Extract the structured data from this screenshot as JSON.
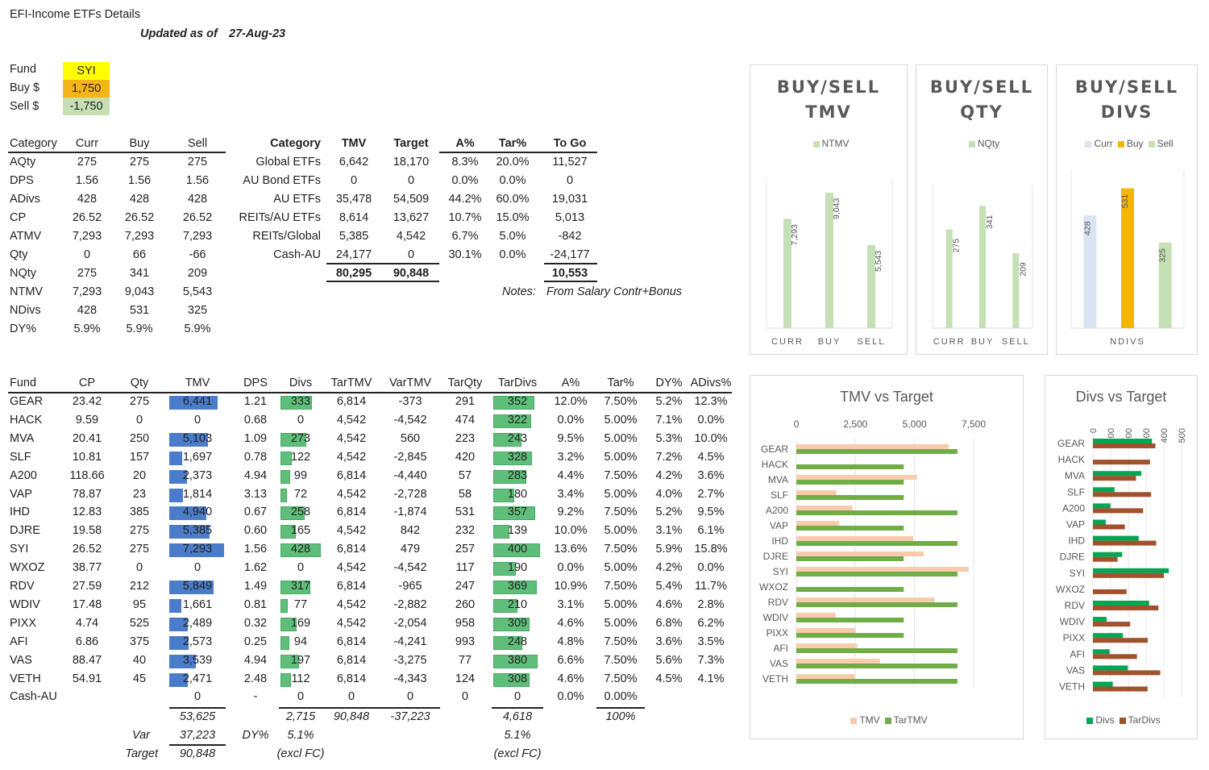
{
  "title": "EFI-Income ETFs Details",
  "updated_label": "Updated as of",
  "updated_date": "27-Aug-23",
  "fund_box": {
    "fund_label": "Fund",
    "fund_value": "SYI",
    "buy_label": "Buy $",
    "buy_value": "1,750",
    "sell_label": "Sell $",
    "sell_value": "-1,750"
  },
  "summary": {
    "headers": [
      "Category",
      "Curr",
      "Buy",
      "Sell"
    ],
    "rows": [
      [
        "AQty",
        "275",
        "275",
        "275"
      ],
      [
        "DPS",
        "1.56",
        "1.56",
        "1.56"
      ],
      [
        "ADivs",
        "428",
        "428",
        "428"
      ],
      [
        "CP",
        "26.52",
        "26.52",
        "26.52"
      ],
      [
        "ATMV",
        "7,293",
        "7,293",
        "7,293"
      ],
      [
        "Qty",
        "0",
        "66",
        "-66"
      ],
      [
        "NQty",
        "275",
        "341",
        "209"
      ],
      [
        "NTMV",
        "7,293",
        "9,043",
        "5,543"
      ],
      [
        "NDivs",
        "428",
        "531",
        "325"
      ],
      [
        "DY%",
        "5.9%",
        "5.9%",
        "5.9%"
      ]
    ]
  },
  "category": {
    "headers": [
      "Category",
      "TMV",
      "Target",
      "A%",
      "Tar%",
      "To Go"
    ],
    "rows": [
      [
        "Global ETFs",
        "6,642",
        "18,170",
        "8.3%",
        "20.0%",
        "11,527"
      ],
      [
        "AU Bond ETFs",
        "0",
        "0",
        "0.0%",
        "0.0%",
        "0"
      ],
      [
        "AU ETFs",
        "35,478",
        "54,509",
        "44.2%",
        "60.0%",
        "19,031"
      ],
      [
        "REITs/AU ETFs",
        "8,614",
        "13,627",
        "10.7%",
        "15.0%",
        "5,013"
      ],
      [
        "REITs/Global",
        "5,385",
        "4,542",
        "6.7%",
        "5.0%",
        "-842"
      ],
      [
        "Cash-AU",
        "24,177",
        "0",
        "30.1%",
        "0.0%",
        "-24,177"
      ]
    ],
    "totals": {
      "tmv": "80,295",
      "target": "90,848",
      "togo": "10,553"
    },
    "notes_label": "Notes:",
    "notes_text": "From Salary Contr+Bonus"
  },
  "funds": {
    "headers": [
      "Fund",
      "CP",
      "Qty",
      "TMV",
      "DPS",
      "Divs",
      "TarTMV",
      "VarTMV",
      "TarQty",
      "TarDivs",
      "A%",
      "Tar%",
      "DY%",
      "ADivs%"
    ],
    "rows": [
      [
        "GEAR",
        "23.42",
        "275",
        "6,441",
        "1.21",
        "333",
        "6,814",
        "-373",
        "291",
        "352",
        "12.0%",
        "7.50%",
        "5.2%",
        "12.3%"
      ],
      [
        "HACK",
        "9.59",
        "0",
        "0",
        "0.68",
        "0",
        "4,542",
        "-4,542",
        "474",
        "322",
        "0.0%",
        "5.00%",
        "7.1%",
        "0.0%"
      ],
      [
        "MVA",
        "20.41",
        "250",
        "5,103",
        "1.09",
        "273",
        "4,542",
        "560",
        "223",
        "243",
        "9.5%",
        "5.00%",
        "5.3%",
        "10.0%"
      ],
      [
        "SLF",
        "10.81",
        "157",
        "1,697",
        "0.78",
        "122",
        "4,542",
        "-2,845",
        "420",
        "328",
        "3.2%",
        "5.00%",
        "7.2%",
        "4.5%"
      ],
      [
        "A200",
        "118.66",
        "20",
        "2,373",
        "4.94",
        "99",
        "6,814",
        "-4,440",
        "57",
        "283",
        "4.4%",
        "7.50%",
        "4.2%",
        "3.6%"
      ],
      [
        "VAP",
        "78.87",
        "23",
        "1,814",
        "3.13",
        "72",
        "4,542",
        "-2,728",
        "58",
        "180",
        "3.4%",
        "5.00%",
        "4.0%",
        "2.7%"
      ],
      [
        "IHD",
        "12.83",
        "385",
        "4,940",
        "0.67",
        "258",
        "6,814",
        "-1,874",
        "531",
        "357",
        "9.2%",
        "7.50%",
        "5.2%",
        "9.5%"
      ],
      [
        "DJRE",
        "19.58",
        "275",
        "5,385",
        "0.60",
        "165",
        "4,542",
        "842",
        "232",
        "139",
        "10.0%",
        "5.00%",
        "3.1%",
        "6.1%"
      ],
      [
        "SYI",
        "26.52",
        "275",
        "7,293",
        "1.56",
        "428",
        "6,814",
        "479",
        "257",
        "400",
        "13.6%",
        "7.50%",
        "5.9%",
        "15.8%"
      ],
      [
        "WXOZ",
        "38.77",
        "0",
        "0",
        "1.62",
        "0",
        "4,542",
        "-4,542",
        "117",
        "190",
        "0.0%",
        "5.00%",
        "4.2%",
        "0.0%"
      ],
      [
        "RDV",
        "27.59",
        "212",
        "5,849",
        "1.49",
        "317",
        "6,814",
        "-965",
        "247",
        "369",
        "10.9%",
        "7.50%",
        "5.4%",
        "11.7%"
      ],
      [
        "WDIV",
        "17.48",
        "95",
        "1,661",
        "0.81",
        "77",
        "4,542",
        "-2,882",
        "260",
        "210",
        "3.1%",
        "5.00%",
        "4.6%",
        "2.8%"
      ],
      [
        "PIXX",
        "4.74",
        "525",
        "2,489",
        "0.32",
        "169",
        "4,542",
        "-2,054",
        "958",
        "309",
        "4.6%",
        "5.00%",
        "6.8%",
        "6.2%"
      ],
      [
        "AFI",
        "6.86",
        "375",
        "2,573",
        "0.25",
        "94",
        "6,814",
        "-4,241",
        "993",
        "248",
        "4.8%",
        "7.50%",
        "3.6%",
        "3.5%"
      ],
      [
        "VAS",
        "88.47",
        "40",
        "3,539",
        "4.94",
        "197",
        "6,814",
        "-3,275",
        "77",
        "380",
        "6.6%",
        "7.50%",
        "5.6%",
        "7.3%"
      ],
      [
        "VETH",
        "54.91",
        "45",
        "2,471",
        "2.48",
        "112",
        "6,814",
        "-4,343",
        "124",
        "308",
        "4.6%",
        "7.50%",
        "4.5%",
        "4.1%"
      ],
      [
        "Cash-AU",
        "",
        "",
        "0",
        "-",
        "0",
        "0",
        "0",
        "0",
        "0",
        "0.0%",
        "0.00%",
        "",
        ""
      ]
    ],
    "totals": {
      "tmv": "53,625",
      "divs": "2,715",
      "tartmv": "90,848",
      "vartmv": "-37,223",
      "tardivs": "4,618",
      "tarpct": "100%"
    },
    "var_label": "Var",
    "var_value": "37,223",
    "target_label": "Target",
    "target_value": "90,848",
    "dy_label": "DY%",
    "dy_divs": "5.1%",
    "dy_tardivs": "5.1%",
    "excl_fc": "(excl FC)"
  },
  "chart_data": [
    {
      "type": "bar",
      "title": "BUY/SELL TMV",
      "categories": [
        "CURR",
        "BUY",
        "SELL"
      ],
      "series": [
        {
          "name": "NTMV",
          "values": [
            7293,
            9043,
            5543
          ]
        }
      ],
      "labels": [
        "7,293",
        "9,043",
        "5,543"
      ],
      "ylim": [
        0,
        10000
      ]
    },
    {
      "type": "bar",
      "title": "BUY/SELL QTY",
      "categories": [
        "CURR",
        "BUY",
        "SELL"
      ],
      "series": [
        {
          "name": "NQty",
          "values": [
            275,
            341,
            209
          ]
        }
      ],
      "labels": [
        "275",
        "341",
        "209"
      ],
      "ylim": [
        0,
        400
      ]
    },
    {
      "type": "bar",
      "title": "BUY/SELL DIVS",
      "categories": [
        "NDIVS"
      ],
      "series": [
        {
          "name": "Curr",
          "values": [
            428
          ]
        },
        {
          "name": "Buy",
          "values": [
            531
          ]
        },
        {
          "name": "Sell",
          "values": [
            325
          ]
        }
      ],
      "labels": [
        "428",
        "531",
        "325"
      ],
      "ylim": [
        0,
        600
      ]
    },
    {
      "type": "bar",
      "orientation": "horizontal",
      "title": "TMV vs Target",
      "categories": [
        "GEAR",
        "HACK",
        "MVA",
        "SLF",
        "A200",
        "VAP",
        "IHD",
        "DJRE",
        "SYI",
        "WXOZ",
        "RDV",
        "WDIV",
        "PIXX",
        "AFI",
        "VAS",
        "VETH"
      ],
      "series": [
        {
          "name": "TMV",
          "values": [
            6441,
            0,
            5103,
            1697,
            2373,
            1814,
            4940,
            5385,
            7293,
            0,
            5849,
            1661,
            2489,
            2573,
            3539,
            2471
          ]
        },
        {
          "name": "TarTMV",
          "values": [
            6814,
            4542,
            4542,
            4542,
            6814,
            4542,
            6814,
            4542,
            6814,
            4542,
            6814,
            4542,
            4542,
            6814,
            6814,
            6814
          ]
        }
      ],
      "xticks": [
        "0",
        "2,500",
        "5,000",
        "7,500"
      ],
      "xlim": [
        0,
        7500
      ]
    },
    {
      "type": "bar",
      "orientation": "horizontal",
      "title": "Divs vs Target",
      "categories": [
        "GEAR",
        "HACK",
        "MVA",
        "SLF",
        "A200",
        "VAP",
        "IHD",
        "DJRE",
        "SYI",
        "WXOZ",
        "RDV",
        "WDIV",
        "PIXX",
        "AFI",
        "VAS",
        "VETH"
      ],
      "series": [
        {
          "name": "Divs",
          "values": [
            333,
            0,
            273,
            122,
            99,
            72,
            258,
            165,
            428,
            0,
            317,
            77,
            169,
            94,
            197,
            112
          ]
        },
        {
          "name": "TarDivs",
          "values": [
            352,
            322,
            243,
            328,
            283,
            180,
            357,
            139,
            400,
            190,
            369,
            210,
            309,
            248,
            380,
            308
          ]
        }
      ],
      "xticks": [
        "0",
        "100",
        "200",
        "300",
        "400",
        "500"
      ],
      "xlim": [
        0,
        500
      ]
    }
  ],
  "colors": {
    "yellow": "#ffff00",
    "orange": "#f5b417",
    "lightgreen": "#c6e0b4",
    "barblue": "#4a7cc9",
    "bargreen": "#5fbf7a",
    "ntmv": "#c5e0b4",
    "curr": "#dae3f3",
    "buy": "#f2b705",
    "tmv": "#f8cbad",
    "tartmv": "#70ad47",
    "divs": "#00a651",
    "tardivs": "#a0522d"
  }
}
